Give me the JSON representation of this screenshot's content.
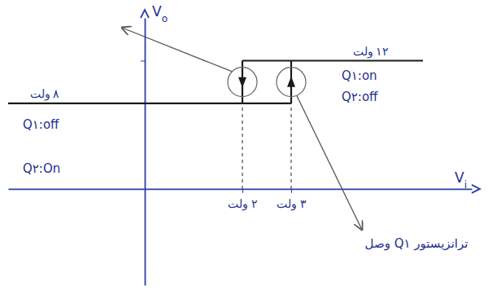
{
  "chart_data": {
    "type": "line",
    "xlabel": "Vi",
    "ylabel": "Vo",
    "xlim": [
      -2.8,
      6.7
    ],
    "ylim": [
      -9,
      16
    ],
    "xticks": [
      {
        "value": 2,
        "label": "۲ ولت"
      },
      {
        "value": 3,
        "label": "۳ ولت"
      }
    ],
    "yticks": [
      {
        "value": 8,
        "label": "۸ ولت"
      },
      {
        "value": 12,
        "label": "۱۲ ولت"
      }
    ],
    "grid": false,
    "series": [
      {
        "x": [
          -2.8,
          3
        ],
        "values": [
          8,
          8
        ],
        "color": "#1a1a1a",
        "line_style": "solid"
      },
      {
        "x": [
          3,
          3
        ],
        "values": [
          8,
          12
        ],
        "color": "#1a1a1a",
        "line_style": "solid",
        "marker": "arrow"
      },
      {
        "x": [
          2,
          5.7
        ],
        "values": [
          12,
          12
        ],
        "color": "#1a1a1a",
        "line_style": "solid"
      },
      {
        "x": [
          2,
          2
        ],
        "values": [
          12,
          8
        ],
        "color": "#1a1a1a",
        "line_style": "solid",
        "marker": "arrow"
      },
      {
        "x": [
          2,
          2
        ],
        "values": [
          0,
          8
        ],
        "color": "#555555",
        "line_style": "dashed"
      },
      {
        "x": [
          3,
          3
        ],
        "values": [
          0,
          8
        ],
        "color": "#555555",
        "line_style": "dashed"
      }
    ],
    "annotations": [
      "Q۱:on",
      "Q۲:off",
      "Q۱:off",
      "Q۲:On",
      "ترانزیستور Q۱ وصل"
    ]
  }
}
